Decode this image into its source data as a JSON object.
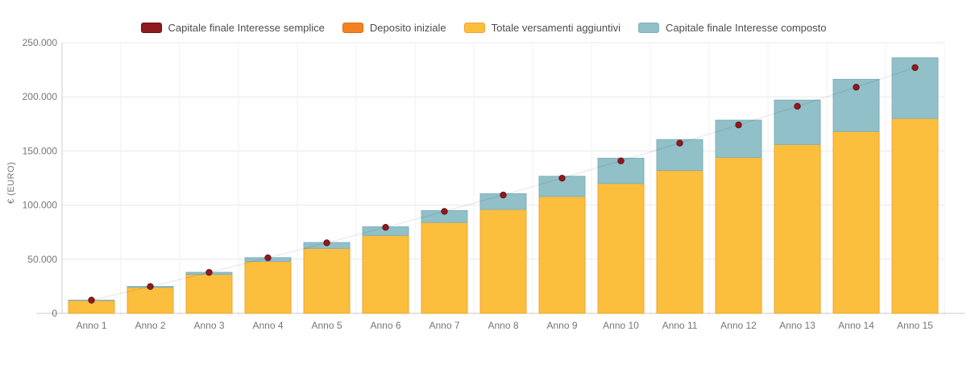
{
  "chart_data": {
    "type": "bar",
    "stacked": true,
    "title": "",
    "xlabel": "",
    "ylabel": "€ (EURO)",
    "ylim": [
      0,
      250000
    ],
    "y_tick_step": 50000,
    "y_tick_labels": [
      "0",
      "50.000",
      "100.000",
      "150.000",
      "200.000",
      "250.000"
    ],
    "grid": true,
    "legend_position": "top",
    "trend_line_color": "rgba(0,0,0,0.09)",
    "categories": [
      "Anno 1",
      "Anno 2",
      "Anno 3",
      "Anno 4",
      "Anno 5",
      "Anno 6",
      "Anno 7",
      "Anno 8",
      "Anno 9",
      "Anno 10",
      "Anno 11",
      "Anno 12",
      "Anno 13",
      "Anno 14",
      "Anno 15"
    ],
    "series": [
      {
        "name": "Capitale finale Interesse semplice",
        "render": "point-with-faint-line",
        "color": "#8E1B1D",
        "border_color": "#6B1112",
        "values": [
          12192,
          24805,
          37838,
          51290,
          65163,
          79455,
          94168,
          109300,
          124853,
          140825,
          157218,
          174030,
          191263,
          208915,
          226988
        ]
      },
      {
        "name": "Deposito iniziale",
        "render": "bar-segment",
        "color": "#F5821F",
        "border_color": "#D96F12",
        "values": [
          0,
          0,
          0,
          0,
          0,
          0,
          0,
          0,
          0,
          0,
          0,
          0,
          0,
          0,
          0
        ]
      },
      {
        "name": "Totale versamenti aggiuntivi",
        "render": "bar-segment",
        "color": "#FCBE3D",
        "border_color": "#EFA52F",
        "values": [
          12000,
          24000,
          36000,
          48000,
          60000,
          72000,
          84000,
          96000,
          108000,
          120000,
          132000,
          144000,
          156000,
          168000,
          180000
        ]
      },
      {
        "name": "Capitale finale Interesse composto",
        "render": "bar-top-segment",
        "segment_note": "segment height = total minus deposito and versamenti; values are bar totals",
        "color": "#92C0C8",
        "border_color": "#7FB1BB",
        "values": [
          12193,
          24824,
          37896,
          51430,
          65440,
          79944,
          94962,
          110513,
          126616,
          143292,
          160563,
          178450,
          196977,
          216167,
          236046
        ]
      }
    ]
  }
}
